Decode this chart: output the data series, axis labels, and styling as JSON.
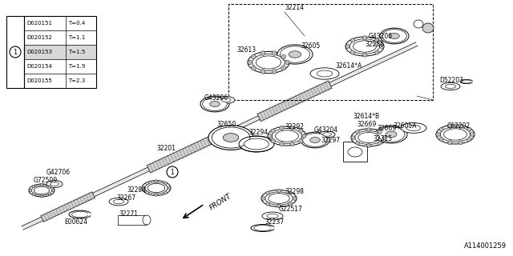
{
  "bg_color": "#ffffff",
  "diagram_id": "A114001259",
  "table_rows": [
    [
      "D020151",
      "T=0.4"
    ],
    [
      "D020152",
      "T=1.1"
    ],
    [
      "D020153",
      "T=1.5"
    ],
    [
      "D020154",
      "T=1.9"
    ],
    [
      "D020155",
      "T=2.3"
    ]
  ],
  "font_size": 6.0,
  "small_font": 5.5
}
